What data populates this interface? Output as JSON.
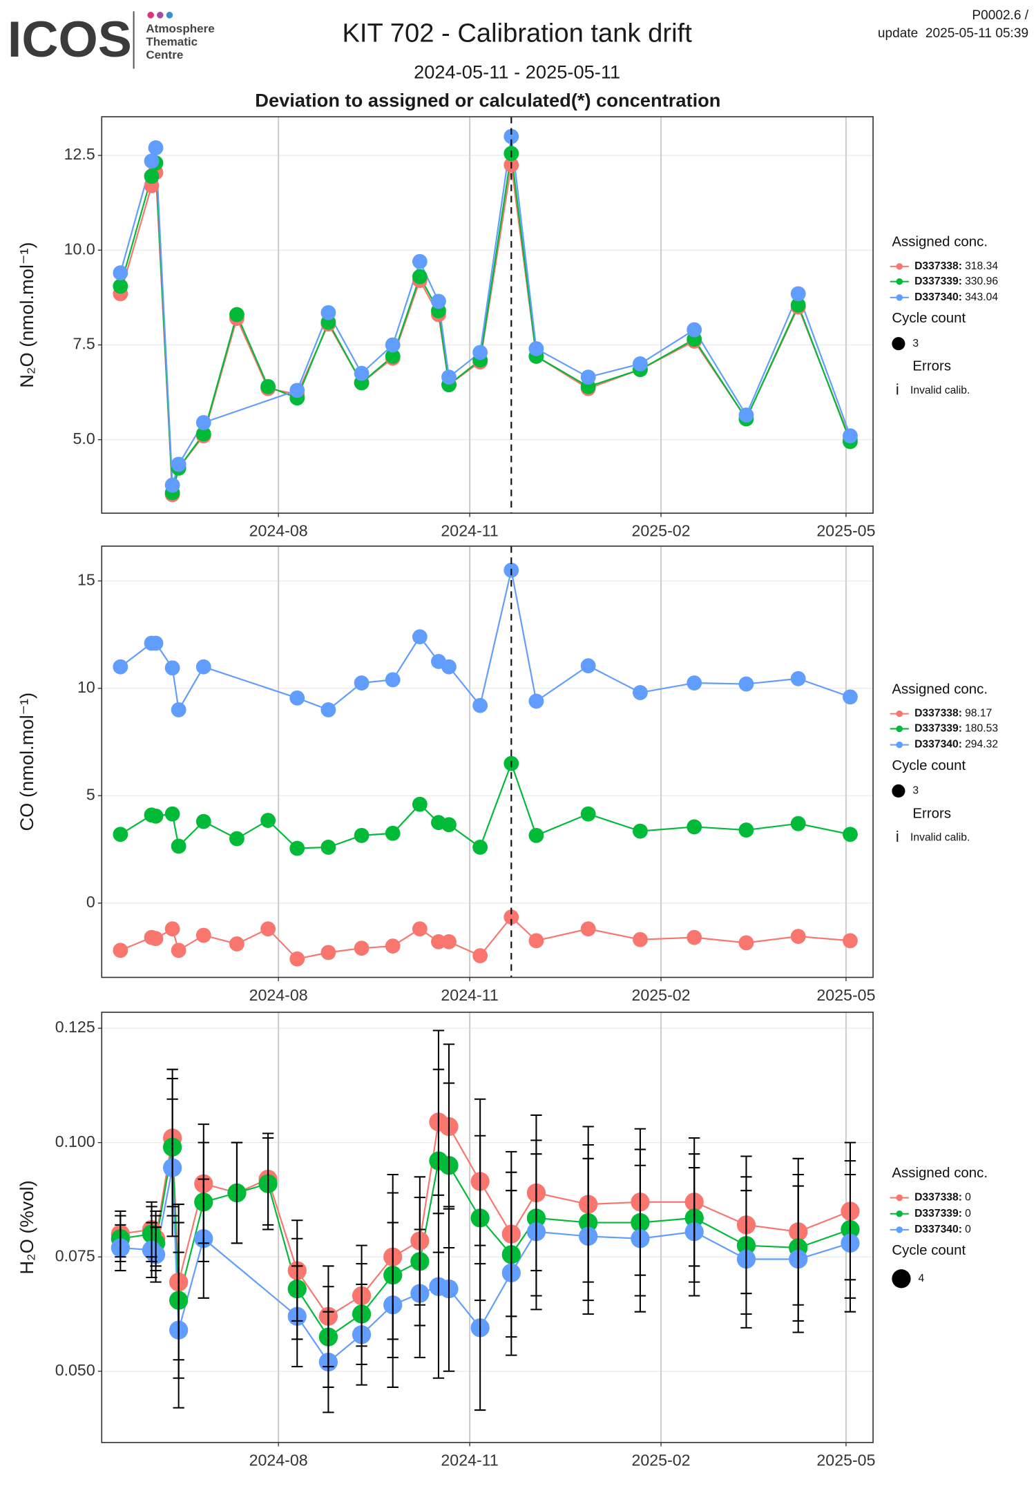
{
  "header": {
    "logo": "ICOS",
    "logo_lines": [
      "Atmosphere",
      "Thematic",
      "Centre"
    ],
    "title": "KIT 702 - Calibration tank drift",
    "subtitle": "2024-05-11 - 2025-05-11",
    "heading": "Deviation to assigned or calculated(*) concentration",
    "code": "P0002.6 /",
    "update": "update  2025-05-11 05:39"
  },
  "chart_data": [
    {
      "type": "line",
      "ylabel": "N₂O (nmol.mol⁻¹)",
      "x": [
        "2024-05-17",
        "2024-06-01",
        "2024-06-03",
        "2024-06-11",
        "2024-06-14",
        "2024-06-26",
        "2024-07-12",
        "2024-07-27",
        "2024-08-10",
        "2024-08-25",
        "2024-09-10",
        "2024-09-25",
        "2024-10-08",
        "2024-10-17",
        "2024-10-22",
        "2024-11-06",
        "2024-11-21",
        "2024-12-03",
        "2024-12-28",
        "2025-01-22",
        "2025-02-17",
        "2025-03-14",
        "2025-04-08",
        "2025-05-03"
      ],
      "xlim": [
        "2024-05-08",
        "2025-05-14"
      ],
      "xticks": [
        {
          "value": "2024-08-01",
          "label": "2024-08"
        },
        {
          "value": "2024-11-01",
          "label": "2024-11"
        },
        {
          "value": "2025-02-01",
          "label": "2025-02"
        },
        {
          "value": "2025-05-01",
          "label": "2025-05"
        }
      ],
      "ylim": [
        3.06,
        13.52
      ],
      "yticks": [
        {
          "value": 5,
          "label": "5.0"
        },
        7.5,
        {
          "value": 10,
          "label": "10.0"
        },
        12.5
      ],
      "vline": "2024-11-21",
      "grid": true,
      "series": [
        {
          "name": "D337338",
          "assigned": 318.34,
          "color": "#F8766D",
          "values": [
            8.85,
            11.7,
            12.05,
            3.55,
            4.25,
            5.1,
            8.2,
            6.35,
            6.2,
            8.05,
            6.5,
            7.15,
            9.2,
            8.3,
            6.45,
            7.05,
            12.25,
            7.2,
            6.35,
            6.85,
            7.6,
            5.55,
            8.5,
            5.0
          ]
        },
        {
          "name": "D337339",
          "assigned": 330.96,
          "color": "#00BA38",
          "values": [
            9.05,
            11.95,
            12.3,
            3.6,
            4.25,
            5.15,
            8.3,
            6.4,
            6.1,
            8.1,
            6.5,
            7.2,
            9.3,
            8.4,
            6.45,
            7.1,
            12.55,
            7.2,
            6.4,
            6.85,
            7.65,
            5.55,
            8.55,
            4.95
          ]
        },
        {
          "name": "D337340",
          "assigned": 343.04,
          "color": "#619CFF",
          "x": [
            "2024-05-17",
            "2024-06-01",
            "2024-06-03",
            "2024-06-11",
            "2024-06-14",
            "2024-06-26",
            "2024-08-10",
            "2024-08-25",
            "2024-09-10",
            "2024-09-25",
            "2024-10-08",
            "2024-10-17",
            "2024-10-22",
            "2024-11-06",
            "2024-11-21",
            "2024-12-03",
            "2024-12-28",
            "2025-01-22",
            "2025-02-17",
            "2025-03-14",
            "2025-04-08",
            "2025-05-03"
          ],
          "values": [
            9.4,
            12.35,
            12.7,
            3.8,
            4.35,
            5.45,
            6.3,
            8.35,
            6.75,
            7.5,
            9.7,
            8.65,
            6.65,
            7.3,
            13.0,
            7.4,
            6.65,
            7.0,
            7.9,
            5.65,
            8.85,
            5.1
          ]
        }
      ],
      "legend": {
        "title": "Assigned conc.",
        "cycle_title": "Cycle count",
        "cycle_count": 3,
        "errors_title": "Errors",
        "error_symbol": "i",
        "errors_label": "Invalid calib."
      }
    },
    {
      "type": "line",
      "ylabel": "CO (nmol.mol⁻¹)",
      "x": [
        "2024-05-17",
        "2024-06-01",
        "2024-06-03",
        "2024-06-11",
        "2024-06-14",
        "2024-06-26",
        "2024-07-12",
        "2024-07-27",
        "2024-08-10",
        "2024-08-25",
        "2024-09-10",
        "2024-09-25",
        "2024-10-08",
        "2024-10-17",
        "2024-10-22",
        "2024-11-06",
        "2024-11-21",
        "2024-12-03",
        "2024-12-28",
        "2025-01-22",
        "2025-02-17",
        "2025-03-14",
        "2025-04-08",
        "2025-05-03"
      ],
      "xlim": [
        "2024-05-08",
        "2025-05-14"
      ],
      "xticks": [
        {
          "value": "2024-08-01",
          "label": "2024-08"
        },
        {
          "value": "2024-11-01",
          "label": "2024-11"
        },
        {
          "value": "2025-02-01",
          "label": "2025-02"
        },
        {
          "value": "2025-05-01",
          "label": "2025-05"
        }
      ],
      "ylim": [
        -3.46,
        16.62
      ],
      "yticks": [
        0,
        5,
        10,
        15
      ],
      "vline": "2024-11-21",
      "grid": true,
      "series": [
        {
          "name": "D337338",
          "assigned": 98.17,
          "color": "#F8766D",
          "values": [
            -2.2,
            -1.6,
            -1.65,
            -1.2,
            -2.2,
            -1.5,
            -1.9,
            -1.2,
            -2.6,
            -2.3,
            -2.1,
            -2.0,
            -1.2,
            -1.8,
            -1.8,
            -2.45,
            -0.65,
            -1.75,
            -1.2,
            -1.7,
            -1.6,
            -1.85,
            -1.55,
            -1.75
          ]
        },
        {
          "name": "D337339",
          "assigned": 180.53,
          "color": "#00BA38",
          "values": [
            3.2,
            4.1,
            4.05,
            4.15,
            2.65,
            3.8,
            3.0,
            3.85,
            2.55,
            2.6,
            3.15,
            3.25,
            4.6,
            3.75,
            3.65,
            2.6,
            6.5,
            3.15,
            4.15,
            3.35,
            3.55,
            3.4,
            3.7,
            3.2
          ]
        },
        {
          "name": "D337340",
          "assigned": 294.32,
          "color": "#619CFF",
          "x": [
            "2024-05-17",
            "2024-06-01",
            "2024-06-03",
            "2024-06-11",
            "2024-06-14",
            "2024-06-26",
            "2024-08-10",
            "2024-08-25",
            "2024-09-10",
            "2024-09-25",
            "2024-10-08",
            "2024-10-17",
            "2024-10-22",
            "2024-11-06",
            "2024-11-21",
            "2024-12-03",
            "2024-12-28",
            "2025-01-22",
            "2025-02-17",
            "2025-03-14",
            "2025-04-08",
            "2025-05-03"
          ],
          "values": [
            11.0,
            12.1,
            12.1,
            10.95,
            9.0,
            11.0,
            9.55,
            9.0,
            10.25,
            10.4,
            12.4,
            11.25,
            11.0,
            9.2,
            15.5,
            9.4,
            11.05,
            9.8,
            10.25,
            10.2,
            10.45,
            9.6
          ]
        }
      ],
      "legend": {
        "title": "Assigned conc.",
        "cycle_title": "Cycle count",
        "cycle_count": 3,
        "errors_title": "Errors",
        "error_symbol": "i",
        "errors_label": "Invalid calib."
      }
    },
    {
      "type": "line",
      "ylabel": "H₂O (%vol)",
      "x": [
        "2024-05-17",
        "2024-06-01",
        "2024-06-03",
        "2024-06-11",
        "2024-06-14",
        "2024-06-26",
        "2024-07-12",
        "2024-07-27",
        "2024-08-10",
        "2024-08-25",
        "2024-09-10",
        "2024-09-25",
        "2024-10-08",
        "2024-10-17",
        "2024-10-22",
        "2024-11-06",
        "2024-11-21",
        "2024-12-03",
        "2024-12-28",
        "2025-01-22",
        "2025-02-17",
        "2025-03-14",
        "2025-04-08",
        "2025-05-03"
      ],
      "xlim": [
        "2024-05-08",
        "2025-05-14"
      ],
      "xticks": [
        {
          "value": "2024-08-01",
          "label": "2024-08"
        },
        {
          "value": "2024-11-01",
          "label": "2024-11"
        },
        {
          "value": "2025-02-01",
          "label": "2025-02"
        },
        {
          "value": "2025-05-01",
          "label": "2025-05"
        }
      ],
      "ylim": [
        0.0344,
        0.1285
      ],
      "yticks": [
        {
          "value": 0.05,
          "label": "0.050"
        },
        0.075,
        {
          "value": 0.1,
          "label": "0.100"
        },
        0.125
      ],
      "grid": true,
      "series": [
        {
          "name": "D337338",
          "assigned": 0,
          "color": "#F8766D",
          "values": [
            0.08,
            0.081,
            0.079,
            0.101,
            0.0695,
            0.091,
            0.089,
            0.092,
            0.072,
            0.062,
            0.0665,
            0.075,
            0.0785,
            0.1045,
            0.1035,
            0.0915,
            0.08,
            0.089,
            0.0865,
            0.087,
            0.087,
            0.082,
            0.0805,
            0.085
          ],
          "errors": [
            0.005,
            0.006,
            0.006,
            0.015,
            0.017,
            0.013,
            0.011,
            0.01,
            0.011,
            0.011,
            0.011,
            0.018,
            0.014,
            0.02,
            0.018,
            0.018,
            0.018,
            0.017,
            0.017,
            0.016,
            0.014,
            0.015,
            0.016,
            0.015
          ]
        },
        {
          "name": "D337339",
          "assigned": 0,
          "color": "#00BA38",
          "values": [
            0.079,
            0.08,
            0.078,
            0.099,
            0.0655,
            0.087,
            0.089,
            0.091,
            0.068,
            0.0575,
            0.0625,
            0.071,
            0.074,
            0.096,
            0.095,
            0.0835,
            0.0755,
            0.0835,
            0.0825,
            0.0825,
            0.0835,
            0.0775,
            0.077,
            0.081
          ],
          "errors": [
            0.005,
            0.006,
            0.006,
            0.015,
            0.017,
            0.013,
            0.011,
            0.01,
            0.011,
            0.011,
            0.011,
            0.018,
            0.014,
            0.02,
            0.018,
            0.018,
            0.018,
            0.017,
            0.017,
            0.016,
            0.014,
            0.015,
            0.016,
            0.015
          ]
        },
        {
          "name": "D337340",
          "assigned": 0,
          "color": "#619CFF",
          "x": [
            "2024-05-17",
            "2024-06-01",
            "2024-06-03",
            "2024-06-11",
            "2024-06-14",
            "2024-06-26",
            "2024-08-10",
            "2024-08-25",
            "2024-09-10",
            "2024-09-25",
            "2024-10-08",
            "2024-10-17",
            "2024-10-22",
            "2024-11-06",
            "2024-11-21",
            "2024-12-03",
            "2024-12-28",
            "2025-01-22",
            "2025-02-17",
            "2025-03-14",
            "2025-04-08",
            "2025-05-03"
          ],
          "values": [
            0.077,
            0.0765,
            0.0755,
            0.0945,
            0.059,
            0.079,
            0.062,
            0.052,
            0.058,
            0.0645,
            0.067,
            0.0685,
            0.068,
            0.0595,
            0.0715,
            0.0805,
            0.0795,
            0.079,
            0.0805,
            0.0745,
            0.0745,
            0.078
          ],
          "errors": [
            0.005,
            0.006,
            0.006,
            0.015,
            0.017,
            0.013,
            0.011,
            0.011,
            0.011,
            0.018,
            0.014,
            0.02,
            0.018,
            0.018,
            0.018,
            0.017,
            0.017,
            0.016,
            0.014,
            0.015,
            0.016,
            0.015
          ]
        }
      ],
      "legend": {
        "title": "Assigned conc.",
        "cycle_title": "Cycle count",
        "cycle_count": 4
      }
    }
  ]
}
